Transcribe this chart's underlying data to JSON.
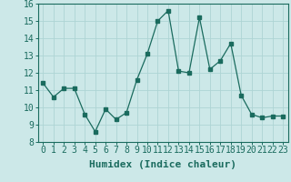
{
  "x": [
    0,
    1,
    2,
    3,
    4,
    5,
    6,
    7,
    8,
    9,
    10,
    11,
    12,
    13,
    14,
    15,
    16,
    17,
    18,
    19,
    20,
    21,
    22,
    23
  ],
  "y": [
    11.4,
    10.6,
    11.1,
    11.1,
    9.6,
    8.6,
    9.9,
    9.3,
    9.7,
    11.6,
    13.1,
    15.0,
    15.6,
    12.1,
    12.0,
    15.2,
    12.2,
    12.7,
    13.7,
    10.7,
    9.6,
    9.4,
    9.5,
    9.5
  ],
  "title": "",
  "xlabel": "Humidex (Indice chaleur)",
  "ylabel": "",
  "xlim": [
    -0.5,
    23.5
  ],
  "ylim": [
    8,
    16
  ],
  "yticks": [
    8,
    9,
    10,
    11,
    12,
    13,
    14,
    15,
    16
  ],
  "xticks": [
    0,
    1,
    2,
    3,
    4,
    5,
    6,
    7,
    8,
    9,
    10,
    11,
    12,
    13,
    14,
    15,
    16,
    17,
    18,
    19,
    20,
    21,
    22,
    23
  ],
  "xtick_labels": [
    "0",
    "1",
    "2",
    "3",
    "4",
    "5",
    "6",
    "7",
    "8",
    "9",
    "10",
    "11",
    "12",
    "13",
    "14",
    "15",
    "16",
    "17",
    "18",
    "19",
    "20",
    "21",
    "22",
    "23"
  ],
  "line_color": "#1a6b5e",
  "marker": "s",
  "marker_size": 2.5,
  "bg_color": "#cce8e8",
  "grid_color": "#aed4d4",
  "xlabel_fontsize": 8,
  "tick_fontsize": 7
}
